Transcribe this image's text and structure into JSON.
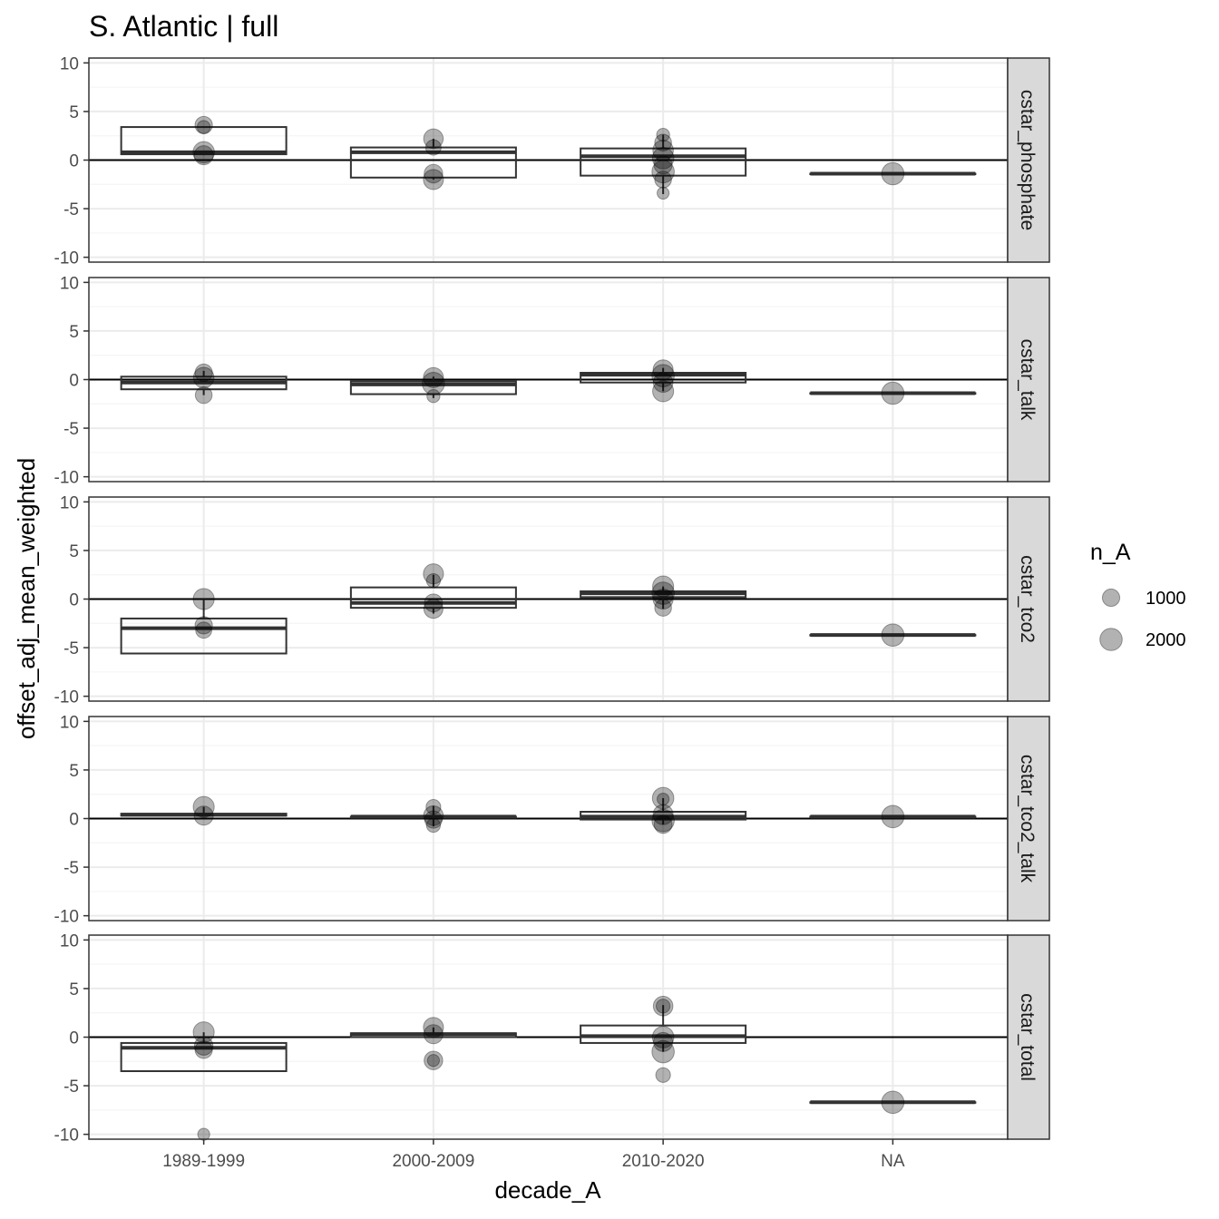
{
  "chart_data": {
    "type": "boxplot",
    "title": "S. Atlantic | full",
    "xlabel": "decade_A",
    "ylabel": "offset_adj_mean_weighted",
    "categories": [
      "1989-1999",
      "2000-2009",
      "2010-2020",
      "NA"
    ],
    "ylim": [
      -10.5,
      10.5
    ],
    "yticks": [
      10,
      5,
      0,
      -5,
      -10
    ],
    "ytick_labels": [
      "10",
      "5",
      "0",
      "-5",
      "-10"
    ],
    "reference_line": 0,
    "grid": true,
    "legend": {
      "title": "n_A",
      "placement": "right",
      "entries": [
        {
          "label": "1000",
          "value": 1000
        },
        {
          "label": "2000",
          "value": 2000
        }
      ]
    },
    "colors": {
      "panel_border": "#333333",
      "grid_major": "#ebebeb",
      "grid_minor": "#f5f5f5",
      "strip_fill": "#d9d9d9",
      "box_line": "#333333",
      "point": "#000000",
      "point_alpha": 0.3
    },
    "panels": [
      {
        "facet": "cstar_phosphate",
        "boxes": [
          {
            "category": "1989-1999",
            "q1": 0.6,
            "median": 0.8,
            "q3": 3.4,
            "lower": 0.5,
            "upper": 3.5
          },
          {
            "category": "2000-2009",
            "q1": -1.8,
            "median": 0.8,
            "q3": 1.3,
            "lower": -2.0,
            "upper": 2.2
          },
          {
            "category": "2010-2020",
            "q1": -1.6,
            "median": 0.4,
            "q3": 1.2,
            "lower": -3.5,
            "upper": 2.6
          },
          {
            "category": "NA",
            "q1": -1.4,
            "median": -1.4,
            "q3": -1.4,
            "lower": -1.4,
            "upper": -1.4
          }
        ],
        "points": [
          {
            "category": "1989-1999",
            "y": 3.6,
            "n": 1000
          },
          {
            "category": "1989-1999",
            "y": 3.4,
            "n": 400
          },
          {
            "category": "1989-1999",
            "y": 0.8,
            "n": 1800
          },
          {
            "category": "1989-1999",
            "y": 0.5,
            "n": 1300
          },
          {
            "category": "2000-2009",
            "y": 2.2,
            "n": 1400
          },
          {
            "category": "2000-2009",
            "y": 1.3,
            "n": 700
          },
          {
            "category": "2000-2009",
            "y": -1.4,
            "n": 1200
          },
          {
            "category": "2000-2009",
            "y": -2.0,
            "n": 1500
          },
          {
            "category": "2010-2020",
            "y": 2.6,
            "n": 400
          },
          {
            "category": "2010-2020",
            "y": 1.8,
            "n": 900
          },
          {
            "category": "2010-2020",
            "y": 1.0,
            "n": 1600
          },
          {
            "category": "2010-2020",
            "y": 0.2,
            "n": 1800
          },
          {
            "category": "2010-2020",
            "y": -0.5,
            "n": 1100
          },
          {
            "category": "2010-2020",
            "y": -1.2,
            "n": 2000
          },
          {
            "category": "2010-2020",
            "y": -2.0,
            "n": 900
          },
          {
            "category": "2010-2020",
            "y": -3.4,
            "n": 300
          },
          {
            "category": "NA",
            "y": -1.4,
            "n": 2000
          }
        ]
      },
      {
        "facet": "cstar_talk",
        "boxes": [
          {
            "category": "1989-1999",
            "q1": -1.0,
            "median": -0.3,
            "q3": 0.3,
            "lower": -1.6,
            "upper": 0.9
          },
          {
            "category": "2000-2009",
            "q1": -1.5,
            "median": -0.5,
            "q3": -0.2,
            "lower": -1.9,
            "upper": 0.3
          },
          {
            "category": "2010-2020",
            "q1": -0.3,
            "median": 0.5,
            "q3": 0.7,
            "lower": -1.2,
            "upper": 1.2
          },
          {
            "category": "NA",
            "q1": -1.4,
            "median": -1.4,
            "q3": -1.4,
            "lower": -1.4,
            "upper": -1.4
          }
        ],
        "points": [
          {
            "category": "1989-1999",
            "y": 0.7,
            "n": 1000
          },
          {
            "category": "1989-1999",
            "y": 0.2,
            "n": 1600
          },
          {
            "category": "1989-1999",
            "y": -1.6,
            "n": 900
          },
          {
            "category": "2000-2009",
            "y": 0.2,
            "n": 1500
          },
          {
            "category": "2000-2009",
            "y": -0.4,
            "n": 2000
          },
          {
            "category": "2000-2009",
            "y": -1.7,
            "n": 400
          },
          {
            "category": "2010-2020",
            "y": 1.0,
            "n": 1500
          },
          {
            "category": "2010-2020",
            "y": 0.4,
            "n": 2000
          },
          {
            "category": "2010-2020",
            "y": -0.3,
            "n": 1400
          },
          {
            "category": "2010-2020",
            "y": -1.2,
            "n": 1700
          },
          {
            "category": "NA",
            "y": -1.4,
            "n": 2000
          }
        ]
      },
      {
        "facet": "cstar_tco2",
        "boxes": [
          {
            "category": "1989-1999",
            "q1": -5.6,
            "median": -3.0,
            "q3": -2.0,
            "lower": -5.6,
            "upper": 0.0
          },
          {
            "category": "2000-2009",
            "q1": -0.9,
            "median": -0.4,
            "q3": 1.2,
            "lower": -1.5,
            "upper": 2.5
          },
          {
            "category": "2010-2020",
            "q1": 0.2,
            "median": 0.6,
            "q3": 0.8,
            "lower": -1.0,
            "upper": 1.3
          },
          {
            "category": "NA",
            "q1": -3.7,
            "median": -3.7,
            "q3": -3.7,
            "lower": -3.7,
            "upper": -3.7
          }
        ],
        "points": [
          {
            "category": "1989-1999",
            "y": 0.0,
            "n": 1700
          },
          {
            "category": "1989-1999",
            "y": -2.7,
            "n": 1000
          },
          {
            "category": "1989-1999",
            "y": -3.2,
            "n": 800
          },
          {
            "category": "2000-2009",
            "y": 2.6,
            "n": 1500
          },
          {
            "category": "2000-2009",
            "y": 1.9,
            "n": 500
          },
          {
            "category": "2000-2009",
            "y": -0.4,
            "n": 1100
          },
          {
            "category": "2000-2009",
            "y": -1.0,
            "n": 1300
          },
          {
            "category": "2010-2020",
            "y": 1.3,
            "n": 1700
          },
          {
            "category": "2010-2020",
            "y": 0.6,
            "n": 2000
          },
          {
            "category": "2010-2020",
            "y": 0.0,
            "n": 1500
          },
          {
            "category": "2010-2020",
            "y": -0.9,
            "n": 900
          },
          {
            "category": "NA",
            "y": -3.7,
            "n": 2000
          }
        ]
      },
      {
        "facet": "cstar_tco2_talk",
        "boxes": [
          {
            "category": "1989-1999",
            "q1": 0.3,
            "median": 0.4,
            "q3": 0.5,
            "lower": 0.2,
            "upper": 1.2
          },
          {
            "category": "2000-2009",
            "q1": 0.1,
            "median": 0.2,
            "q3": 0.2,
            "lower": -0.8,
            "upper": 1.3
          },
          {
            "category": "2010-2020",
            "q1": -0.1,
            "median": 0.2,
            "q3": 0.7,
            "lower": -0.6,
            "upper": 2.1
          },
          {
            "category": "NA",
            "q1": 0.2,
            "median": 0.2,
            "q3": 0.2,
            "lower": 0.2,
            "upper": 0.2
          }
        ],
        "points": [
          {
            "category": "1989-1999",
            "y": 1.2,
            "n": 1700
          },
          {
            "category": "1989-1999",
            "y": 0.3,
            "n": 1300
          },
          {
            "category": "2000-2009",
            "y": 1.2,
            "n": 600
          },
          {
            "category": "2000-2009",
            "y": 0.3,
            "n": 1400
          },
          {
            "category": "2000-2009",
            "y": -0.1,
            "n": 1000
          },
          {
            "category": "2000-2009",
            "y": -0.7,
            "n": 500
          },
          {
            "category": "2010-2020",
            "y": 2.1,
            "n": 1800
          },
          {
            "category": "2010-2020",
            "y": 2.0,
            "n": 300
          },
          {
            "category": "2010-2020",
            "y": 0.4,
            "n": 1500
          },
          {
            "category": "2010-2020",
            "y": -0.2,
            "n": 2000
          },
          {
            "category": "2010-2020",
            "y": -0.6,
            "n": 1100
          },
          {
            "category": "NA",
            "y": 0.2,
            "n": 2000
          }
        ]
      },
      {
        "facet": "cstar_total",
        "boxes": [
          {
            "category": "1989-1999",
            "q1": -3.5,
            "median": -1.1,
            "q3": -0.6,
            "lower": -3.5,
            "upper": 0.5
          },
          {
            "category": "2000-2009",
            "q1": 0.0,
            "median": 0.3,
            "q3": 0.4,
            "lower": 0.0,
            "upper": 1.0
          },
          {
            "category": "2010-2020",
            "q1": -0.6,
            "median": 0.1,
            "q3": 1.2,
            "lower": -1.5,
            "upper": 3.3
          },
          {
            "category": "NA",
            "q1": -6.7,
            "median": -6.7,
            "q3": -6.7,
            "lower": -6.7,
            "upper": -6.7
          }
        ],
        "points": [
          {
            "category": "1989-1999",
            "y": 0.5,
            "n": 1700
          },
          {
            "category": "1989-1999",
            "y": -0.9,
            "n": 1200
          },
          {
            "category": "1989-1999",
            "y": -1.3,
            "n": 1000
          },
          {
            "category": "1989-1999",
            "y": -10.0,
            "n": 300
          },
          {
            "category": "2000-2009",
            "y": 1.0,
            "n": 1500
          },
          {
            "category": "2000-2009",
            "y": 0.3,
            "n": 1300
          },
          {
            "category": "2000-2009",
            "y": -2.4,
            "n": 1200
          },
          {
            "category": "2000-2009",
            "y": -2.4,
            "n": 300
          },
          {
            "category": "2010-2020",
            "y": 3.2,
            "n": 1400
          },
          {
            "category": "2010-2020",
            "y": 3.2,
            "n": 500
          },
          {
            "category": "2010-2020",
            "y": 0.0,
            "n": 1800
          },
          {
            "category": "2010-2020",
            "y": -0.5,
            "n": 1300
          },
          {
            "category": "2010-2020",
            "y": -1.5,
            "n": 2000
          },
          {
            "category": "2010-2020",
            "y": -3.9,
            "n": 600
          },
          {
            "category": "NA",
            "y": -6.7,
            "n": 2000
          }
        ]
      }
    ]
  }
}
